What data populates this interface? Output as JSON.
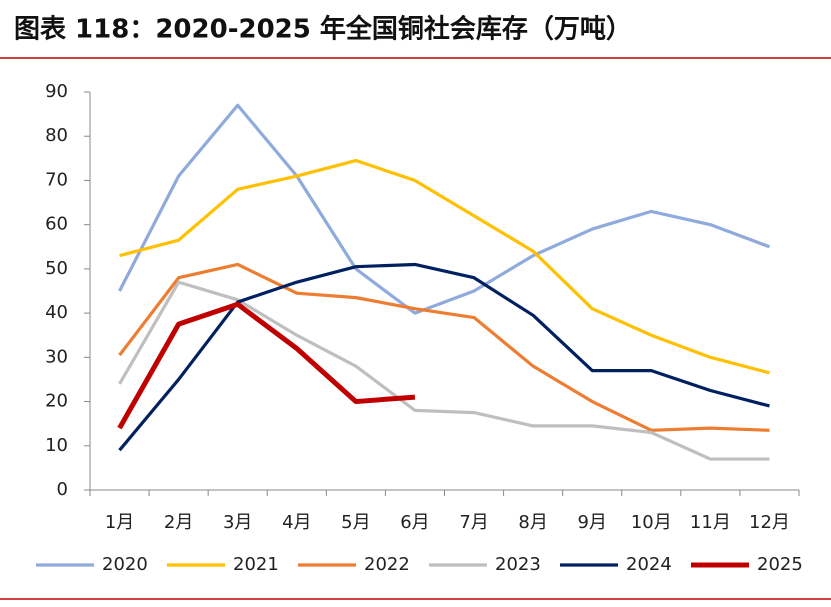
{
  "chart_data": {
    "type": "line",
    "title": "图表 118：2020-2025 年全国铜社会库存（万吨）",
    "categories": [
      "1月",
      "2月",
      "3月",
      "4月",
      "5月",
      "6月",
      "7月",
      "8月",
      "9月",
      "10月",
      "11月",
      "12月"
    ],
    "series": [
      {
        "name": "2020",
        "color": "#8faadc",
        "values": [
          45,
          71,
          87,
          71,
          50,
          40,
          45,
          53,
          59,
          63,
          60,
          55
        ]
      },
      {
        "name": "2021",
        "color": "#ffc000",
        "values": [
          53,
          56.5,
          68,
          71,
          74.5,
          70,
          62,
          54,
          41,
          35,
          30,
          26.5
        ]
      },
      {
        "name": "2022",
        "color": "#ed7d31",
        "values": [
          30.5,
          48,
          51,
          44.5,
          43.5,
          41,
          39,
          28,
          20,
          13.5,
          14,
          13.5
        ]
      },
      {
        "name": "2023",
        "color": "#bfbfbf",
        "values": [
          24,
          47,
          43,
          35,
          28,
          18,
          17.5,
          14.5,
          14.5,
          13,
          7,
          7
        ]
      },
      {
        "name": "2024",
        "color": "#002060",
        "values": [
          9,
          25,
          42.5,
          47,
          50.5,
          51,
          48,
          39.5,
          27,
          27,
          22.5,
          19
        ]
      },
      {
        "name": "2025",
        "color": "#c00000",
        "values": [
          14,
          37.5,
          42,
          32,
          20,
          21,
          null,
          null,
          null,
          null,
          null,
          null
        ]
      }
    ],
    "ylim": [
      0,
      90
    ],
    "yticks": [
      0,
      10,
      20,
      30,
      40,
      50,
      60,
      70,
      80,
      90
    ],
    "grid": false
  }
}
